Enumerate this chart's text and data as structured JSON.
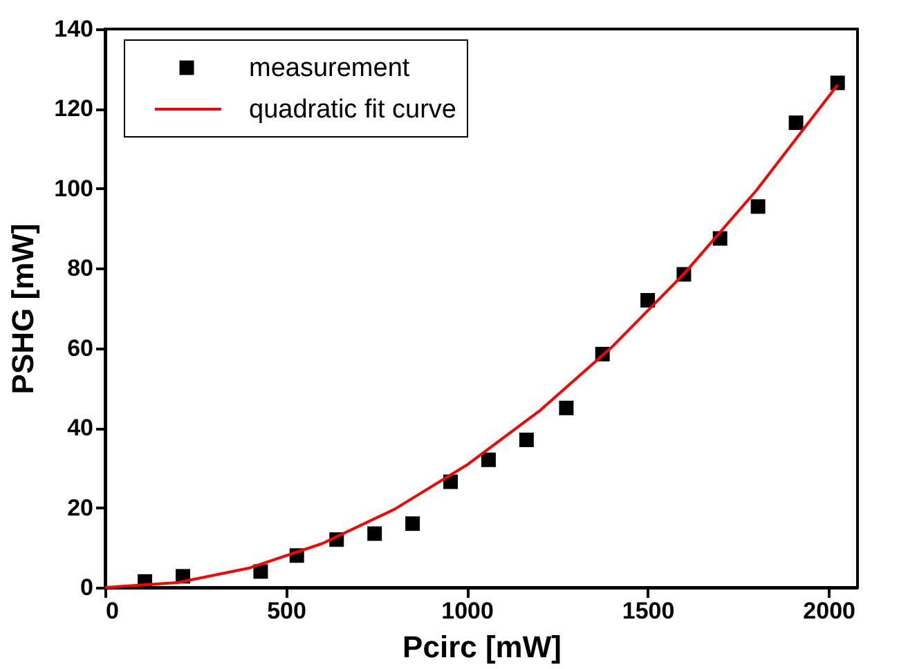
{
  "chart_data": {
    "type": "scatter",
    "xlabel": "Pcirc [mW]",
    "ylabel": "PSHG [mW]",
    "xlim": [
      0,
      2080
    ],
    "ylim": [
      0,
      140
    ],
    "xticks": [
      0,
      500,
      1000,
      1500,
      2000
    ],
    "yticks": [
      0,
      20,
      40,
      60,
      80,
      100,
      120,
      140
    ],
    "grid": false,
    "legend": "top left",
    "series": [
      {
        "name": "measurement",
        "type": "scatter",
        "marker": "square",
        "color": "#000000",
        "x": [
          110,
          215,
          430,
          530,
          640,
          745,
          850,
          955,
          1060,
          1165,
          1275,
          1375,
          1500,
          1600,
          1700,
          1805,
          1910,
          2025
        ],
        "values": [
          1.5,
          2.8,
          4,
          8,
          12,
          13.5,
          16,
          26.5,
          32,
          37,
          45,
          58.5,
          72,
          78.5,
          87.5,
          95.5,
          116.5,
          126.5
        ]
      },
      {
        "name": "quadratic fit curve",
        "type": "line",
        "line_style": "solid",
        "color": "#ff0000",
        "x": [
          0,
          200,
          400,
          600,
          800,
          1000,
          1200,
          1400,
          1600,
          1800,
          2025
        ],
        "values": [
          0,
          1.2,
          4.9,
          11,
          19.6,
          30.7,
          44.2,
          60.2,
          78.6,
          99.5,
          126
        ]
      }
    ]
  }
}
